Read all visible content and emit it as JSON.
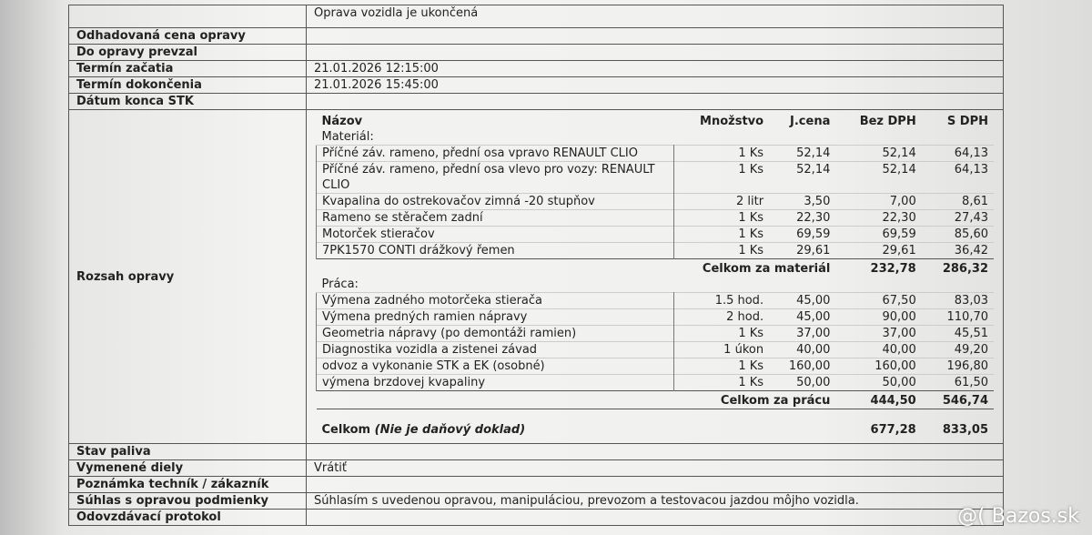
{
  "status_row": {
    "value": "Oprava vozidla je ukončená"
  },
  "header_rows": [
    {
      "label": "Odhadovaná cena opravy"
    },
    {
      "label": "Do opravy prevzal"
    },
    {
      "label": "Termín začatia",
      "value": "21.01.2026 12:15:00"
    },
    {
      "label": "Termín dokončenia",
      "value": "21.01.2026 15:45:00"
    },
    {
      "label": "Dátum konca STK"
    }
  ],
  "scope": {
    "label": "Rozsah opravy",
    "columns": [
      "Názov",
      "Množstvo",
      "J.cena",
      "Bez DPH",
      "S DPH"
    ],
    "sections": [
      {
        "heading": "Materiál:",
        "items": [
          [
            "Příčné záv. rameno, přední osa vpravo RENAULT CLIO",
            "1 Ks",
            "52,14",
            "52,14",
            "64,13"
          ],
          [
            "Příčné záv. rameno, přední osa vlevo pro vozy: RENAULT CLIO",
            "1 Ks",
            "52,14",
            "52,14",
            "64,13"
          ],
          [
            "Kvapalina do ostrekovačov zimná -20 stupňov",
            "2 litr",
            "3,50",
            "7,00",
            "8,61"
          ],
          [
            "Rameno se stěračem zadní",
            "1 Ks",
            "22,30",
            "22,30",
            "27,43"
          ],
          [
            "Motorček stieračov",
            "1 Ks",
            "69,59",
            "69,59",
            "85,60"
          ],
          [
            "7PK1570 CONTI drážkový řemen",
            "1 Ks",
            "29,61",
            "29,61",
            "36,42"
          ]
        ],
        "total": {
          "label": "Celkom za materiál",
          "net": "232,78",
          "gross": "286,32"
        }
      },
      {
        "heading": "Práca:",
        "items": [
          [
            "Výmena zadného motorčeka stierača",
            "1.5 hod.",
            "45,00",
            "67,50",
            "83,03"
          ],
          [
            "Výmena predných ramien nápravy",
            "2 hod.",
            "45,00",
            "90,00",
            "110,70"
          ],
          [
            "Geometria nápravy (po demontáži ramien)",
            "1 Ks",
            "37,00",
            "37,00",
            "45,51"
          ],
          [
            "Diagnostika vozidla a zistenei závad",
            "1 úkon",
            "40,00",
            "40,00",
            "49,20"
          ],
          [
            "odvoz a vykonanie STK a EK (osobné)",
            "1 Ks",
            "160,00",
            "160,00",
            "196,80"
          ],
          [
            "výmena brzdovej kvapaliny",
            "1 Ks",
            "50,00",
            "50,00",
            "61,50"
          ]
        ],
        "total": {
          "label": "Celkom za prácu",
          "net": "444,50",
          "gross": "546,74"
        }
      }
    ],
    "grand_total": {
      "label": "Celkom",
      "note": "(Nie je daňový doklad)",
      "net": "677,28",
      "gross": "833,05"
    }
  },
  "footer_rows": [
    {
      "label": "Stav paliva"
    },
    {
      "label": "Vymenené diely",
      "value": "Vrátiť"
    },
    {
      "label": "Poznámka techník / zákazník"
    },
    {
      "label": "Súhlas s opravou podmienky",
      "value": "Súhlasím s uvedenou opravou, manipuláciou, prevozom a testovacou jazdou môjho vozidla."
    },
    {
      "label": "Odovzdávací protokol"
    }
  ],
  "watermark": "@( Bazos.sk"
}
